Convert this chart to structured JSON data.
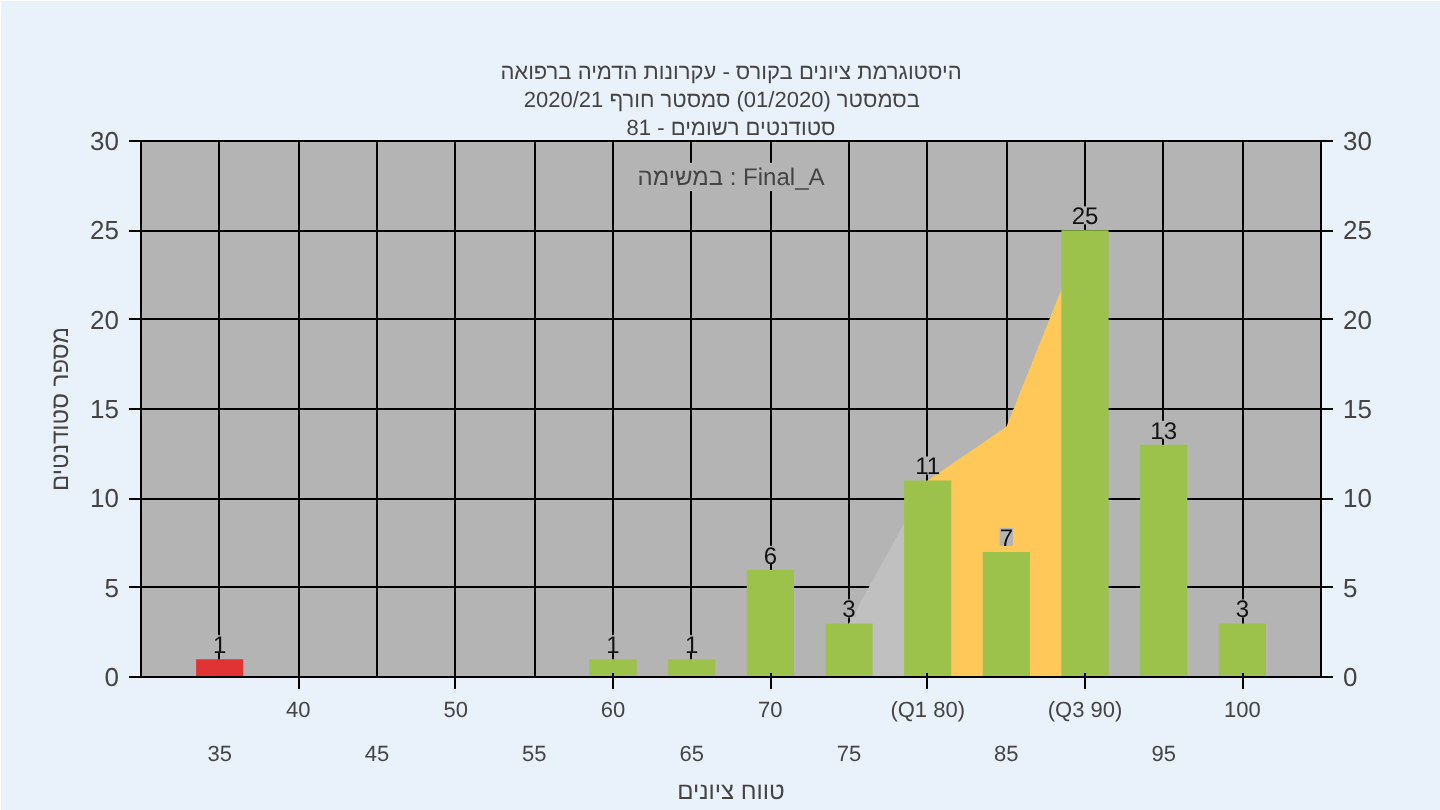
{
  "chart_data": {
    "type": "bar",
    "title": "היסטוגרמת ציונים בקורס - עקרונות הדמיה ברפואה",
    "subtitle": "בסמסטר  (01/2020)  סמסטר חורף  2020/21",
    "xlabel": "טווח ציונים",
    "ylabel": "מספר סטודנטים",
    "annotations": [
      "סטודנטים רשומים - 81",
      "במשימה : Final_A"
    ],
    "categories": [
      "35",
      "40",
      "45",
      "50",
      "55",
      "60",
      "65",
      "70",
      "75",
      "(Q1 80)",
      "85",
      "(Q3 90)",
      "95",
      "100"
    ],
    "series": [
      {
        "type": "area",
        "color": "#c0c0c0",
        "values": [
          null,
          null,
          null,
          null,
          null,
          null,
          null,
          null,
          3,
          11,
          null,
          null,
          null,
          null
        ]
      },
      {
        "type": "area",
        "color": "#ffc858",
        "values": [
          null,
          null,
          null,
          null,
          null,
          null,
          null,
          null,
          null,
          11,
          14,
          25,
          null,
          null
        ]
      },
      {
        "values": [
          1,
          0,
          0,
          0,
          0,
          1,
          1,
          6,
          3,
          11,
          7,
          25,
          13,
          3
        ],
        "colors": [
          "#e03434",
          "#9cc24c",
          "#9cc24c",
          "#9cc24c",
          "#9cc24c",
          "#9cc24c",
          "#9cc24c",
          "#9cc24c",
          "#9cc24c",
          "#9cc24c",
          "#9cc24c",
          "#9cc24c",
          "#9cc24c",
          "#9cc24c"
        ],
        "value_labels": [
          "1",
          null,
          null,
          null,
          null,
          "1",
          "1",
          "6",
          "3",
          "11",
          "7",
          "25",
          "13",
          "3"
        ]
      }
    ],
    "ylim": [
      0,
      30
    ],
    "yticks": [
      0,
      5,
      10,
      15,
      20,
      25,
      30
    ],
    "y2lim": [
      0,
      30
    ],
    "y2ticks": [
      0,
      5,
      10,
      15,
      20,
      25,
      30
    ],
    "grid": true
  }
}
